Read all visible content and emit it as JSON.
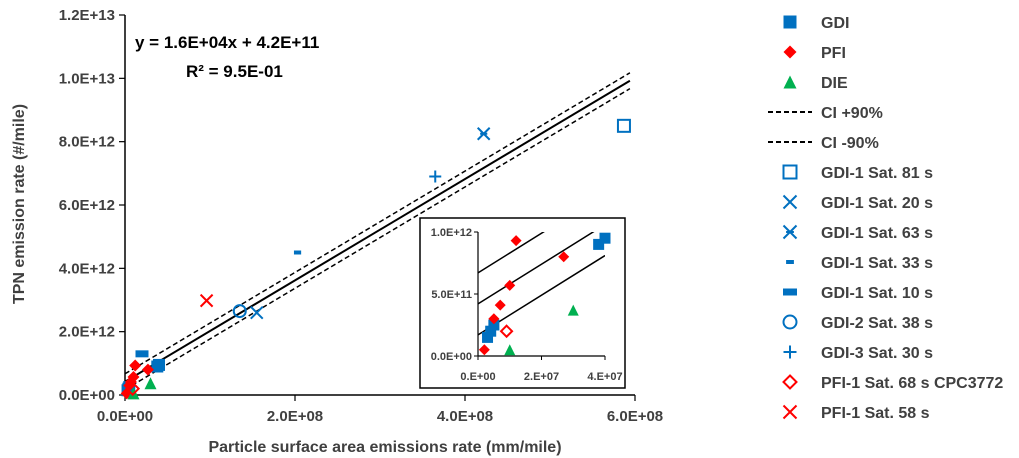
{
  "chart_data": {
    "type": "scatter",
    "xlabel": "Particle surface area emissions rate (mm/mile)",
    "ylabel": "TPN emission rate (#/mile)",
    "xlim": [
      0,
      600000000
    ],
    "ylim": [
      0,
      12000000000000
    ],
    "x_ticks": [
      "0.0E+00",
      "2.0E+08",
      "4.0E+08",
      "6.0E+08"
    ],
    "y_ticks": [
      "0.0E+00",
      "2.0E+12",
      "4.0E+12",
      "6.0E+12",
      "8.0E+12",
      "1.0E+13",
      "1.2E+13"
    ],
    "x_tick_values": [
      0,
      200000000,
      400000000,
      600000000
    ],
    "y_tick_values": [
      0,
      2000000000000,
      4000000000000,
      6000000000000,
      8000000000000,
      10000000000000,
      12000000000000
    ],
    "annotation": {
      "equation": "y = 1.6E+04x + 4.2E+11",
      "r_squared": "R² = 9.5E-01"
    },
    "fit": {
      "slope": 16000,
      "intercept": 420000000000,
      "ci_offset": 250000000000
    },
    "series": [
      {
        "name": "GDI",
        "marker": "square",
        "color": "#0070C0",
        "points": [
          [
            38000000,
            900000000000
          ],
          [
            4000000,
            200000000000
          ],
          [
            5000000,
            250000000000
          ],
          [
            3000000,
            150000000000
          ],
          [
            40000000,
            950000000000
          ]
        ]
      },
      {
        "name": "PFI",
        "marker": "diamond",
        "color": "#FF0000",
        "points": [
          [
            2000000,
            50000000000
          ],
          [
            7000000,
            410000000000
          ],
          [
            10000000,
            570000000000
          ],
          [
            27000000,
            800000000000
          ],
          [
            12000000,
            930000000000
          ],
          [
            5000000,
            300000000000
          ]
        ]
      },
      {
        "name": "DIE",
        "marker": "triangle",
        "color": "#00B050",
        "points": [
          [
            10000000,
            50000000000
          ],
          [
            30000000,
            370000000000
          ]
        ]
      },
      {
        "name": "CI +90%",
        "marker": "dash",
        "color": "#000000",
        "points": []
      },
      {
        "name": "CI -90%",
        "marker": "dash",
        "color": "#000000",
        "points": []
      },
      {
        "name": "GDI-1 Sat. 81 s",
        "marker": "open-square",
        "color": "#0070C0",
        "points": [
          [
            587000000,
            8500000000000
          ]
        ]
      },
      {
        "name": "GDI-1 Sat. 20 s",
        "marker": "x",
        "color": "#0070C0",
        "points": [
          [
            155000000,
            2600000000000
          ]
        ]
      },
      {
        "name": "GDI-1 Sat. 63 s",
        "marker": "asterisk",
        "color": "#0070C0",
        "points": [
          [
            422000000,
            8250000000000
          ]
        ]
      },
      {
        "name": "GDI-1 Sat. 33 s",
        "marker": "short-dash",
        "color": "#0070C0",
        "points": [
          [
            203000000,
            4500000000000
          ]
        ]
      },
      {
        "name": "GDI-1 Sat. 10 s",
        "marker": "bar",
        "color": "#0070C0",
        "points": [
          [
            20000000,
            1300000000000
          ]
        ]
      },
      {
        "name": "GDI-2 Sat. 38 s",
        "marker": "circle",
        "color": "#0070C0",
        "points": [
          [
            135000000,
            2650000000000
          ]
        ]
      },
      {
        "name": "GDI-3 Sat. 30 s",
        "marker": "plus",
        "color": "#0070C0",
        "points": [
          [
            365000000,
            6900000000000
          ]
        ]
      },
      {
        "name": "PFI-1 Sat. 68 s CPC3772",
        "marker": "open-diamond",
        "color": "#FF0000",
        "points": [
          [
            9000000,
            200000000000
          ]
        ]
      },
      {
        "name": "PFI-1 Sat. 58 s",
        "marker": "x",
        "color": "#FF0000",
        "points": [
          [
            96000000,
            2980000000000
          ]
        ]
      }
    ],
    "inset": {
      "xlim": [
        0,
        40000000
      ],
      "ylim": [
        0,
        1000000000000
      ],
      "x_ticks": [
        "0.E+00",
        "2.E+07",
        "4.E+07"
      ],
      "y_ticks": [
        "0.0E+00",
        "5.0E+11",
        "1.0E+12"
      ],
      "x_tick_values": [
        0,
        20000000,
        40000000
      ],
      "y_tick_values": [
        0,
        500000000000,
        1000000000000
      ]
    }
  }
}
